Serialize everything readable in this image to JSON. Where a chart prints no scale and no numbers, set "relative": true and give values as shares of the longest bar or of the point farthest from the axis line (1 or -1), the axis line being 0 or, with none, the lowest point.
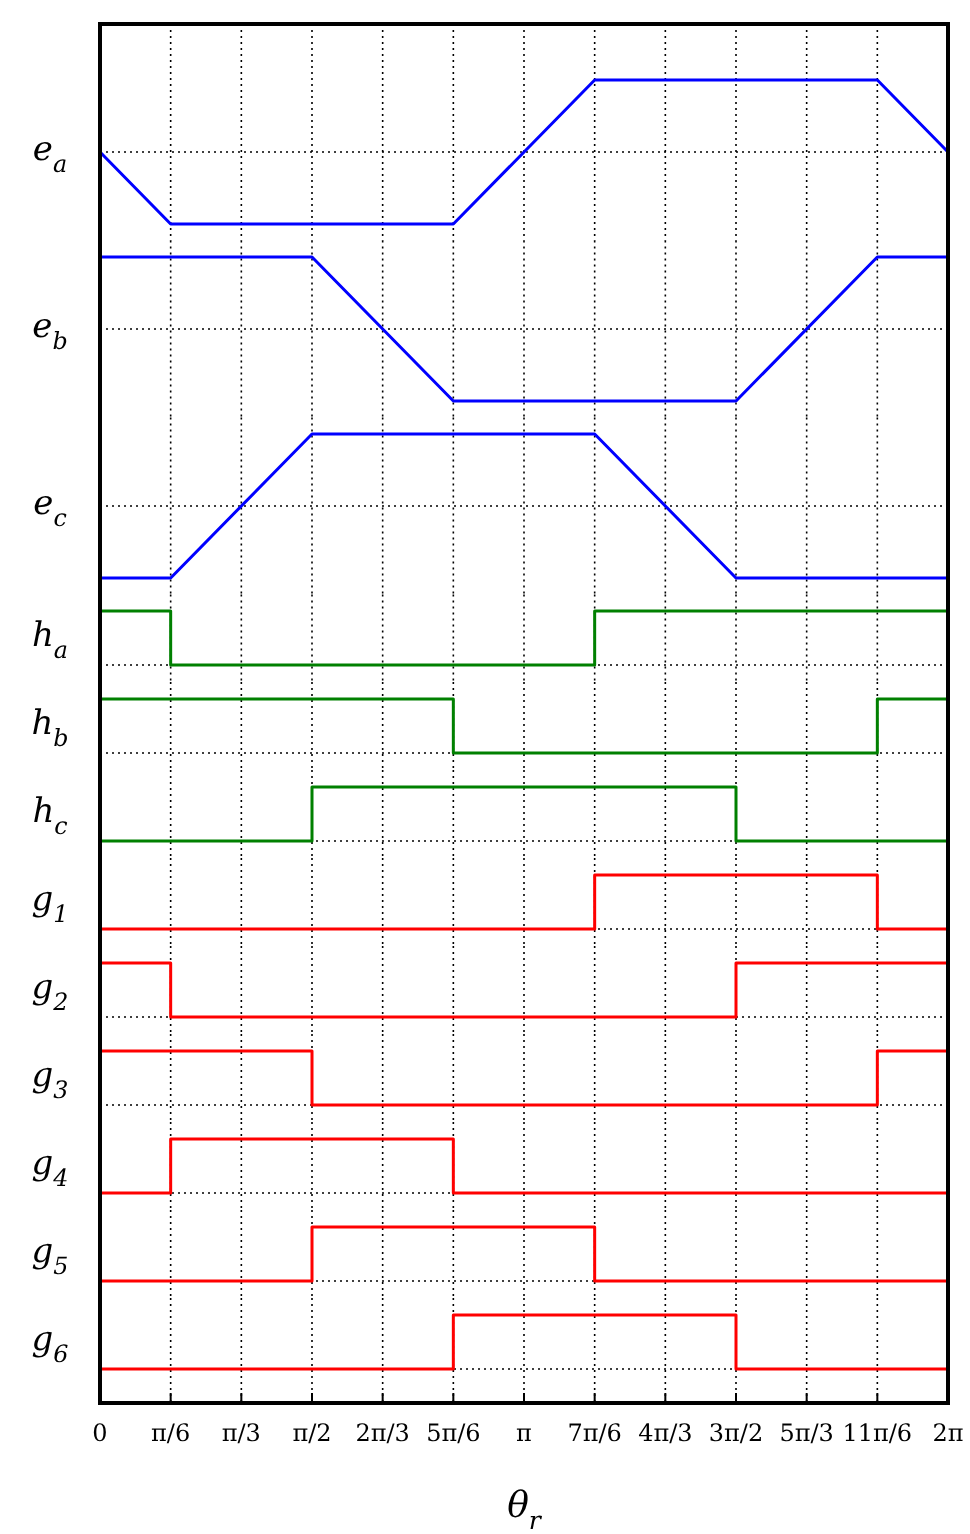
{
  "chart_data": [
    {
      "type": "line",
      "relative": true,
      "ylabel": "e$_{a}$",
      "x": [
        0,
        0.5236,
        2.618,
        3.6652,
        5.7596,
        6.2832
      ],
      "series": [
        {
          "color": "#0000ff",
          "values": [
            0,
            -1,
            -1,
            1,
            1,
            0
          ]
        }
      ],
      "xlim": [
        0,
        6.2832
      ],
      "xticks": [
        {
          "value": 0.5236,
          "label": null
        },
        {
          "value": 1.0472,
          "label": null
        },
        {
          "value": 1.5708,
          "label": null
        },
        {
          "value": 2.0944,
          "label": null
        },
        {
          "value": 2.618,
          "label": null
        },
        {
          "value": 3.1416,
          "label": null
        },
        {
          "value": 3.6652,
          "label": null
        },
        {
          "value": 4.1888,
          "label": null
        },
        {
          "value": 4.7124,
          "label": null
        },
        {
          "value": 5.236,
          "label": null
        },
        {
          "value": 5.7596,
          "label": null
        }
      ],
      "grid": "x",
      "tick_labels": false
    },
    {
      "type": "line",
      "relative": true,
      "ylabel": "e$_{b}$",
      "x": [
        0,
        1.5708,
        2.618,
        4.7124,
        5.7596,
        6.2832
      ],
      "series": [
        {
          "color": "#0000ff",
          "values": [
            1,
            1,
            -1,
            -1,
            1,
            1
          ]
        }
      ],
      "xlim": [
        0,
        6.2832
      ],
      "xticks": [
        {
          "value": 0.5236,
          "label": null
        },
        {
          "value": 1.0472,
          "label": null
        },
        {
          "value": 1.5708,
          "label": null
        },
        {
          "value": 2.0944,
          "label": null
        },
        {
          "value": 2.618,
          "label": null
        },
        {
          "value": 3.1416,
          "label": null
        },
        {
          "value": 3.6652,
          "label": null
        },
        {
          "value": 4.1888,
          "label": null
        },
        {
          "value": 4.7124,
          "label": null
        },
        {
          "value": 5.236,
          "label": null
        },
        {
          "value": 5.7596,
          "label": null
        }
      ],
      "grid": "x",
      "tick_labels": false
    },
    {
      "type": "line",
      "relative": true,
      "ylabel": "e$_{c}$",
      "x": [
        0,
        0.5236,
        1.5708,
        3.6652,
        4.7124,
        6.2832
      ],
      "series": [
        {
          "color": "#0000ff",
          "values": [
            -1,
            -1,
            1,
            1,
            -1,
            -1
          ]
        }
      ],
      "xlim": [
        0,
        6.2832
      ],
      "xticks": [
        {
          "value": 0.5236,
          "label": null
        },
        {
          "value": 1.0472,
          "label": null
        },
        {
          "value": 1.5708,
          "label": null
        },
        {
          "value": 2.0944,
          "label": null
        },
        {
          "value": 2.618,
          "label": null
        },
        {
          "value": 3.1416,
          "label": null
        },
        {
          "value": 3.6652,
          "label": null
        },
        {
          "value": 4.1888,
          "label": null
        },
        {
          "value": 4.7124,
          "label": null
        },
        {
          "value": 5.236,
          "label": null
        },
        {
          "value": 5.7596,
          "label": null
        }
      ],
      "grid": "x",
      "tick_labels": false
    },
    {
      "type": "step",
      "relative": true,
      "ylabel": "h$_{a}$",
      "x": [
        0,
        0.5236,
        3.6652,
        6.2832
      ],
      "series": [
        {
          "color": "#008000",
          "values": [
            1,
            0,
            1,
            1
          ]
        }
      ],
      "xlim": [
        0,
        6.2832
      ],
      "xticks": [
        {
          "value": 0.5236,
          "label": null
        },
        {
          "value": 1.0472,
          "label": null
        },
        {
          "value": 1.5708,
          "label": null
        },
        {
          "value": 2.0944,
          "label": null
        },
        {
          "value": 2.618,
          "label": null
        },
        {
          "value": 3.1416,
          "label": null
        },
        {
          "value": 3.6652,
          "label": null
        },
        {
          "value": 4.1888,
          "label": null
        },
        {
          "value": 4.7124,
          "label": null
        },
        {
          "value": 5.236,
          "label": null
        },
        {
          "value": 5.7596,
          "label": null
        }
      ],
      "grid": "x",
      "tick_labels": false
    },
    {
      "type": "step",
      "relative": true,
      "ylabel": "h$_{b}$",
      "x": [
        0,
        2.618,
        5.7596,
        6.2832
      ],
      "series": [
        {
          "color": "#008000",
          "values": [
            1,
            0,
            1,
            1
          ]
        }
      ],
      "xlim": [
        0,
        6.2832
      ],
      "xticks": [
        {
          "value": 0.5236,
          "label": null
        },
        {
          "value": 1.0472,
          "label": null
        },
        {
          "value": 1.5708,
          "label": null
        },
        {
          "value": 2.0944,
          "label": null
        },
        {
          "value": 2.618,
          "label": null
        },
        {
          "value": 3.1416,
          "label": null
        },
        {
          "value": 3.6652,
          "label": null
        },
        {
          "value": 4.1888,
          "label": null
        },
        {
          "value": 4.7124,
          "label": null
        },
        {
          "value": 5.236,
          "label": null
        },
        {
          "value": 5.7596,
          "label": null
        }
      ],
      "grid": "x",
      "tick_labels": false
    },
    {
      "type": "step",
      "relative": true,
      "ylabel": "h$_{c}$",
      "x": [
        0,
        1.5708,
        4.7124,
        6.2832
      ],
      "series": [
        {
          "color": "#008000",
          "values": [
            0,
            1,
            0,
            0
          ]
        }
      ],
      "xlim": [
        0,
        6.2832
      ],
      "xticks": [
        {
          "value": 0.5236,
          "label": null
        },
        {
          "value": 1.0472,
          "label": null
        },
        {
          "value": 1.5708,
          "label": null
        },
        {
          "value": 2.0944,
          "label": null
        },
        {
          "value": 2.618,
          "label": null
        },
        {
          "value": 3.1416,
          "label": null
        },
        {
          "value": 3.6652,
          "label": null
        },
        {
          "value": 4.1888,
          "label": null
        },
        {
          "value": 4.7124,
          "label": null
        },
        {
          "value": 5.236,
          "label": null
        },
        {
          "value": 5.7596,
          "label": null
        }
      ],
      "grid": "x",
      "tick_labels": false
    },
    {
      "type": "step",
      "relative": true,
      "ylabel": "g$_{1}$",
      "x": [
        0,
        3.6652,
        5.7596,
        6.2832
      ],
      "series": [
        {
          "color": "#ff0000",
          "values": [
            0,
            1,
            0,
            0
          ]
        }
      ],
      "xlim": [
        0,
        6.2832
      ],
      "xticks": [
        {
          "value": 0.5236,
          "label": null
        },
        {
          "value": 1.0472,
          "label": null
        },
        {
          "value": 1.5708,
          "label": null
        },
        {
          "value": 2.0944,
          "label": null
        },
        {
          "value": 2.618,
          "label": null
        },
        {
          "value": 3.1416,
          "label": null
        },
        {
          "value": 3.6652,
          "label": null
        },
        {
          "value": 4.1888,
          "label": null
        },
        {
          "value": 4.7124,
          "label": null
        },
        {
          "value": 5.236,
          "label": null
        },
        {
          "value": 5.7596,
          "label": null
        }
      ],
      "grid": "x",
      "tick_labels": false
    },
    {
      "type": "step",
      "relative": true,
      "ylabel": "g$_{2}$",
      "x": [
        0,
        0.5236,
        4.7124,
        6.2832
      ],
      "series": [
        {
          "color": "#ff0000",
          "values": [
            1,
            0,
            1,
            1
          ]
        }
      ],
      "xlim": [
        0,
        6.2832
      ],
      "xticks": [
        {
          "value": 0.5236,
          "label": null
        },
        {
          "value": 1.0472,
          "label": null
        },
        {
          "value": 1.5708,
          "label": null
        },
        {
          "value": 2.0944,
          "label": null
        },
        {
          "value": 2.618,
          "label": null
        },
        {
          "value": 3.1416,
          "label": null
        },
        {
          "value": 3.6652,
          "label": null
        },
        {
          "value": 4.1888,
          "label": null
        },
        {
          "value": 4.7124,
          "label": null
        },
        {
          "value": 5.236,
          "label": null
        },
        {
          "value": 5.7596,
          "label": null
        }
      ],
      "grid": "x",
      "tick_labels": false
    },
    {
      "type": "step",
      "relative": true,
      "ylabel": "g$_{3}$",
      "x": [
        0,
        1.5708,
        5.7596,
        6.2832
      ],
      "series": [
        {
          "color": "#ff0000",
          "values": [
            1,
            0,
            1,
            1
          ]
        }
      ],
      "xlim": [
        0,
        6.2832
      ],
      "xticks": [
        {
          "value": 0.5236,
          "label": null
        },
        {
          "value": 1.0472,
          "label": null
        },
        {
          "value": 1.5708,
          "label": null
        },
        {
          "value": 2.0944,
          "label": null
        },
        {
          "value": 2.618,
          "label": null
        },
        {
          "value": 3.1416,
          "label": null
        },
        {
          "value": 3.6652,
          "label": null
        },
        {
          "value": 4.1888,
          "label": null
        },
        {
          "value": 4.7124,
          "label": null
        },
        {
          "value": 5.236,
          "label": null
        },
        {
          "value": 5.7596,
          "label": null
        }
      ],
      "grid": "x",
      "tick_labels": false
    },
    {
      "type": "step",
      "relative": true,
      "ylabel": "g$_{4}$",
      "x": [
        0,
        0.5236,
        2.618,
        6.2832
      ],
      "series": [
        {
          "color": "#ff0000",
          "values": [
            0,
            1,
            0,
            0
          ]
        }
      ],
      "xlim": [
        0,
        6.2832
      ],
      "xticks": [
        {
          "value": 0.5236,
          "label": null
        },
        {
          "value": 1.0472,
          "label": null
        },
        {
          "value": 1.5708,
          "label": null
        },
        {
          "value": 2.0944,
          "label": null
        },
        {
          "value": 2.618,
          "label": null
        },
        {
          "value": 3.1416,
          "label": null
        },
        {
          "value": 3.6652,
          "label": null
        },
        {
          "value": 4.1888,
          "label": null
        },
        {
          "value": 4.7124,
          "label": null
        },
        {
          "value": 5.236,
          "label": null
        },
        {
          "value": 5.7596,
          "label": null
        }
      ],
      "grid": "x",
      "tick_labels": false
    },
    {
      "type": "step",
      "relative": true,
      "ylabel": "g$_{5}$",
      "x": [
        0,
        1.5708,
        3.6652,
        6.2832
      ],
      "series": [
        {
          "color": "#ff0000",
          "values": [
            0,
            1,
            0,
            0
          ]
        }
      ],
      "xlim": [
        0,
        6.2832
      ],
      "xticks": [
        {
          "value": 0.5236,
          "label": null
        },
        {
          "value": 1.0472,
          "label": null
        },
        {
          "value": 1.5708,
          "label": null
        },
        {
          "value": 2.0944,
          "label": null
        },
        {
          "value": 2.618,
          "label": null
        },
        {
          "value": 3.1416,
          "label": null
        },
        {
          "value": 3.6652,
          "label": null
        },
        {
          "value": 4.1888,
          "label": null
        },
        {
          "value": 4.7124,
          "label": null
        },
        {
          "value": 5.236,
          "label": null
        },
        {
          "value": 5.7596,
          "label": null
        }
      ],
      "grid": "x",
      "tick_labels": false
    },
    {
      "type": "step",
      "relative": true,
      "ylabel": "g$_{6}$",
      "xlabel": "θ$_{r}$",
      "x": [
        0,
        2.618,
        4.7124,
        6.2832
      ],
      "series": [
        {
          "color": "#ff0000",
          "values": [
            0,
            1,
            0,
            0
          ]
        }
      ],
      "xlim": [
        0,
        6.2832
      ],
      "xticks": [
        0,
        {
          "value": 0.5236,
          "label": "π/6"
        },
        {
          "value": 1.0472,
          "label": "π/3"
        },
        {
          "value": 1.5708,
          "label": "π/2"
        },
        {
          "value": 2.0944,
          "label": "2π/3"
        },
        {
          "value": 2.618,
          "label": "5π/6"
        },
        {
          "value": 3.1416,
          "label": "π"
        },
        {
          "value": 3.6652,
          "label": "7π/6"
        },
        {
          "value": 4.1888,
          "label": "4π/3"
        },
        {
          "value": 4.7124,
          "label": "3π/2"
        },
        {
          "value": 5.236,
          "label": "5π/3"
        },
        {
          "value": 5.7596,
          "label": "11π/6"
        },
        {
          "value": 6.2832,
          "label": "2π"
        }
      ],
      "grid": "x",
      "tick_labels": "x"
    }
  ]
}
